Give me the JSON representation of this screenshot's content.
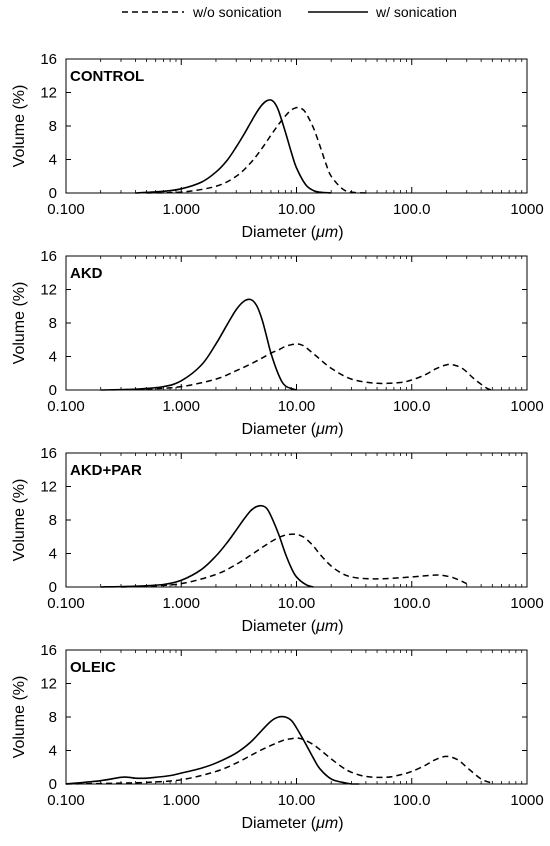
{
  "legend": {
    "items": [
      {
        "label": "w/o sonication",
        "style": "dashed"
      },
      {
        "label": "w/ sonication",
        "style": "solid"
      }
    ],
    "placement": "top-center"
  },
  "chart_data": [
    {
      "type": "line",
      "title": "CONTROL",
      "xlabel_text": "Diameter (",
      "xlabel_unit": "μm",
      "xlabel_close": ")",
      "ylabel": "Volume (%)",
      "xscale": "log",
      "xlim": [
        0.1,
        1000
      ],
      "ylim": [
        0,
        16
      ],
      "xticks": [
        "0.100",
        "1.000",
        "10.00",
        "100.0",
        "1000"
      ],
      "yticks": [
        "0",
        "4",
        "8",
        "12",
        "16"
      ],
      "grid": false,
      "series": [
        {
          "name": "w/o sonication",
          "style": "dashed",
          "x": [
            0.5,
            1.0,
            2.0,
            3.0,
            4.0,
            5.0,
            6.0,
            7.0,
            8.0,
            9.0,
            10.0,
            11.0,
            12.0,
            14.0,
            16.0,
            18.0,
            20.0,
            25.0,
            30.0,
            40.0
          ],
          "y": [
            0.0,
            0.1,
            0.8,
            2.0,
            3.6,
            5.3,
            6.9,
            8.2,
            9.2,
            9.9,
            10.2,
            10.1,
            9.6,
            7.8,
            5.6,
            3.5,
            2.0,
            0.5,
            0.1,
            0.0
          ]
        },
        {
          "name": "w/ sonication",
          "style": "solid",
          "x": [
            0.4,
            0.7,
            1.0,
            1.5,
            2.0,
            2.5,
            3.0,
            3.5,
            4.0,
            4.5,
            5.0,
            5.5,
            6.0,
            6.5,
            7.0,
            8.0,
            9.0,
            10.0,
            12.0,
            14.0,
            16.0,
            20.0
          ],
          "y": [
            0.0,
            0.2,
            0.5,
            1.3,
            2.5,
            3.9,
            5.5,
            7.0,
            8.4,
            9.6,
            10.5,
            11.0,
            11.1,
            10.7,
            9.8,
            7.3,
            4.9,
            3.0,
            1.0,
            0.3,
            0.1,
            0.0
          ]
        }
      ]
    },
    {
      "type": "line",
      "title": "AKD",
      "xlabel_text": "Diameter (",
      "xlabel_unit": "μm",
      "xlabel_close": ")",
      "ylabel": "Volume (%)",
      "xscale": "log",
      "xlim": [
        0.1,
        1000
      ],
      "ylim": [
        0,
        16
      ],
      "xticks": [
        "0.100",
        "1.000",
        "10.00",
        "100.0",
        "1000"
      ],
      "yticks": [
        "0",
        "4",
        "8",
        "12",
        "16"
      ],
      "grid": false,
      "series": [
        {
          "name": "w/o sonication",
          "style": "dashed",
          "x": [
            0.5,
            1.0,
            2.0,
            3.0,
            4.0,
            5.0,
            6.0,
            7.0,
            8.0,
            9.0,
            10.0,
            11.0,
            12.0,
            15.0,
            20.0,
            30.0,
            50.0,
            80.0,
            100.0,
            130.0,
            160.0,
            200.0,
            230.0,
            280.0,
            350.0,
            450.0,
            500.0
          ],
          "y": [
            0.1,
            0.4,
            1.3,
            2.3,
            3.1,
            3.8,
            4.4,
            4.8,
            5.2,
            5.4,
            5.5,
            5.4,
            5.1,
            4.0,
            2.6,
            1.3,
            0.8,
            0.9,
            1.2,
            1.8,
            2.5,
            3.0,
            3.0,
            2.5,
            1.3,
            0.2,
            0.0
          ]
        },
        {
          "name": "w/ sonication",
          "style": "solid",
          "x": [
            0.2,
            0.4,
            0.7,
            1.0,
            1.5,
            2.0,
            2.5,
            3.0,
            3.5,
            4.0,
            4.5,
            5.0,
            5.5,
            6.0,
            7.0,
            8.0,
            10.0
          ],
          "y": [
            0.0,
            0.1,
            0.4,
            1.1,
            3.0,
            5.5,
            7.8,
            9.6,
            10.6,
            10.8,
            10.1,
            8.5,
            6.4,
            4.4,
            1.8,
            0.5,
            0.0
          ]
        }
      ]
    },
    {
      "type": "line",
      "title": "AKD+PAR",
      "xlabel_text": "Diameter (",
      "xlabel_unit": "μm",
      "xlabel_close": ")",
      "ylabel": "Volume (%)",
      "xscale": "log",
      "xlim": [
        0.1,
        1000
      ],
      "ylim": [
        0,
        16
      ],
      "xticks": [
        "0.100",
        "1.000",
        "10.00",
        "100.0",
        "1000"
      ],
      "yticks": [
        "0",
        "4",
        "8",
        "12",
        "16"
      ],
      "grid": false,
      "series": [
        {
          "name": "w/o sonication",
          "style": "dashed",
          "x": [
            0.3,
            0.5,
            1.0,
            2.0,
            3.0,
            4.0,
            5.0,
            6.0,
            7.0,
            8.0,
            9.0,
            10.0,
            11.0,
            12.0,
            14.0,
            16.0,
            20.0,
            25.0,
            30.0,
            40.0,
            60.0,
            100.0,
            150.0,
            180.0,
            230.0,
            300.0
          ],
          "y": [
            0.0,
            0.1,
            0.4,
            1.5,
            2.7,
            3.8,
            4.7,
            5.4,
            5.9,
            6.2,
            6.3,
            6.3,
            6.1,
            5.8,
            4.9,
            3.9,
            2.5,
            1.6,
            1.2,
            1.0,
            1.0,
            1.2,
            1.4,
            1.4,
            1.1,
            0.4
          ]
        },
        {
          "name": "w/ sonication",
          "style": "solid",
          "x": [
            0.2,
            0.4,
            0.7,
            1.0,
            1.5,
            2.0,
            2.5,
            3.0,
            3.5,
            4.0,
            4.5,
            5.0,
            5.5,
            6.0,
            7.0,
            8.0,
            9.0,
            10.0,
            12.0,
            14.0
          ],
          "y": [
            0.0,
            0.1,
            0.3,
            0.8,
            2.1,
            3.7,
            5.3,
            6.8,
            8.1,
            9.1,
            9.6,
            9.7,
            9.4,
            8.5,
            6.3,
            4.0,
            2.3,
            1.2,
            0.3,
            0.0
          ]
        }
      ]
    },
    {
      "type": "line",
      "title": "OLEIC",
      "xlabel_text": "Diameter (",
      "xlabel_unit": "μm",
      "xlabel_close": ")",
      "ylabel": "Volume (%)",
      "xscale": "log",
      "xlim": [
        0.1,
        1000
      ],
      "ylim": [
        0,
        16
      ],
      "xticks": [
        "0.100",
        "1.000",
        "10.00",
        "100.0",
        "1000"
      ],
      "yticks": [
        "0",
        "4",
        "8",
        "12",
        "16"
      ],
      "grid": false,
      "series": [
        {
          "name": "w/o sonication",
          "style": "dashed",
          "x": [
            0.1,
            0.3,
            0.5,
            1.0,
            2.0,
            3.0,
            4.0,
            5.0,
            6.0,
            7.0,
            8.0,
            9.0,
            10.0,
            11.0,
            12.0,
            14.0,
            16.0,
            20.0,
            25.0,
            30.0,
            40.0,
            60.0,
            80.0,
            100.0,
            130.0,
            160.0,
            200.0,
            250.0,
            300.0,
            400.0,
            500.0
          ],
          "y": [
            0.0,
            0.1,
            0.2,
            0.5,
            1.5,
            2.5,
            3.4,
            4.1,
            4.6,
            5.0,
            5.3,
            5.4,
            5.5,
            5.4,
            5.2,
            4.7,
            4.1,
            3.0,
            2.0,
            1.4,
            0.9,
            0.8,
            1.1,
            1.5,
            2.2,
            2.9,
            3.3,
            2.9,
            2.0,
            0.6,
            0.1
          ]
        },
        {
          "name": "w/ sonication",
          "style": "solid",
          "x": [
            0.1,
            0.2,
            0.3,
            0.35,
            0.4,
            0.5,
            0.6,
            0.8,
            1.0,
            1.5,
            2.0,
            3.0,
            4.0,
            5.0,
            6.0,
            7.0,
            8.0,
            9.0,
            10.0,
            12.0,
            14.0,
            16.0,
            20.0,
            25.0,
            30.0,
            35.0
          ],
          "y": [
            0.0,
            0.4,
            0.8,
            0.8,
            0.7,
            0.7,
            0.8,
            1.0,
            1.3,
            1.9,
            2.5,
            3.7,
            5.0,
            6.4,
            7.5,
            8.0,
            8.0,
            7.6,
            6.7,
            4.8,
            3.1,
            1.8,
            0.6,
            0.2,
            0.0,
            0.0
          ]
        }
      ]
    }
  ]
}
